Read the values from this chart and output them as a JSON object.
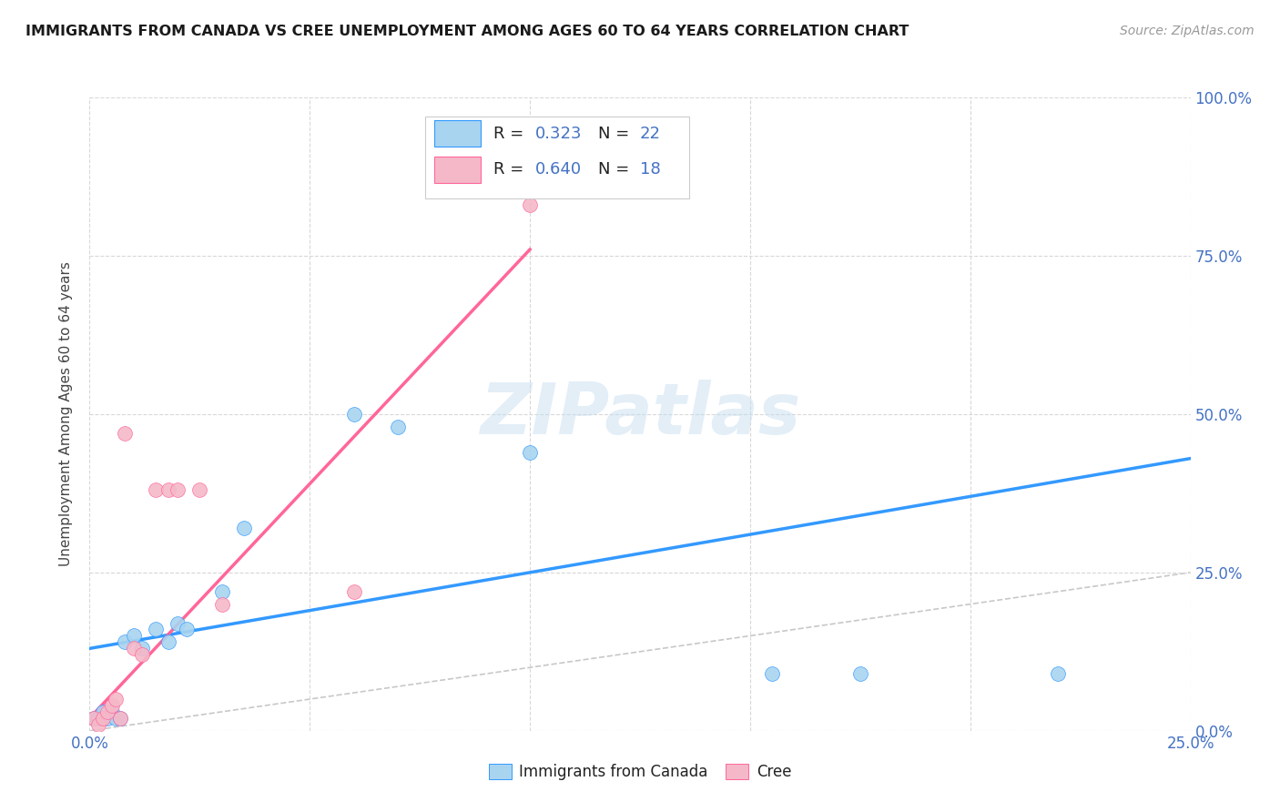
{
  "title": "IMMIGRANTS FROM CANADA VS CREE UNEMPLOYMENT AMONG AGES 60 TO 64 YEARS CORRELATION CHART",
  "source": "Source: ZipAtlas.com",
  "ylabel": "Unemployment Among Ages 60 to 64 years",
  "xlim": [
    0.0,
    0.25
  ],
  "ylim": [
    0.0,
    1.0
  ],
  "xticks": [
    0.0,
    0.05,
    0.1,
    0.15,
    0.2,
    0.25
  ],
  "yticks": [
    0.0,
    0.25,
    0.5,
    0.75,
    1.0
  ],
  "ytick_labels_right": [
    "0.0%",
    "25.0%",
    "50.0%",
    "75.0%",
    "100.0%"
  ],
  "xtick_labels": [
    "0.0%",
    "",
    "",
    "",
    "",
    "25.0%"
  ],
  "background_color": "#ffffff",
  "grid_color": "#d8d8d8",
  "blue_scatter_color": "#a8d4f0",
  "pink_scatter_color": "#f5b8c8",
  "blue_line_color": "#3399ff",
  "pink_line_color": "#ff6699",
  "diagonal_color": "#c8c8c8",
  "watermark": "ZIPatlas",
  "blue_scatter_x": [
    0.001,
    0.002,
    0.003,
    0.003,
    0.004,
    0.005,
    0.006,
    0.007,
    0.008,
    0.01,
    0.012,
    0.015,
    0.018,
    0.02,
    0.022,
    0.03,
    0.035,
    0.06,
    0.07,
    0.1,
    0.155,
    0.175,
    0.22
  ],
  "blue_scatter_y": [
    0.02,
    0.02,
    0.02,
    0.03,
    0.02,
    0.03,
    0.02,
    0.02,
    0.14,
    0.15,
    0.13,
    0.16,
    0.14,
    0.17,
    0.16,
    0.22,
    0.32,
    0.5,
    0.48,
    0.44,
    0.09,
    0.09,
    0.09
  ],
  "pink_scatter_x": [
    0.001,
    0.002,
    0.003,
    0.004,
    0.005,
    0.006,
    0.007,
    0.008,
    0.01,
    0.012,
    0.015,
    0.018,
    0.02,
    0.025,
    0.03,
    0.06,
    0.1
  ],
  "pink_scatter_y": [
    0.02,
    0.01,
    0.02,
    0.03,
    0.04,
    0.05,
    0.02,
    0.47,
    0.13,
    0.12,
    0.38,
    0.38,
    0.38,
    0.38,
    0.2,
    0.22,
    0.83
  ],
  "blue_trend_x": [
    0.0,
    0.25
  ],
  "blue_trend_y": [
    0.13,
    0.43
  ],
  "pink_trend_x": [
    0.0,
    0.1
  ],
  "pink_trend_y": [
    0.02,
    0.76
  ],
  "marker_size": 130
}
